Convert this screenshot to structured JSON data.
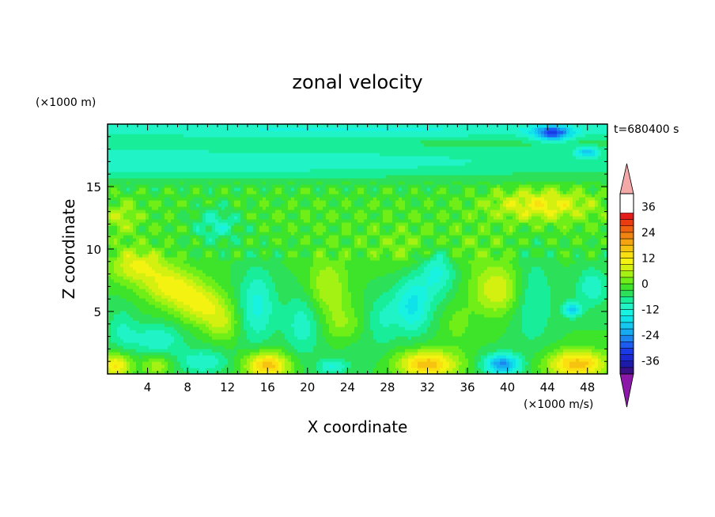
{
  "chart_data": {
    "type": "heatmap",
    "title": "zonal velocity",
    "xlabel": "X coordinate",
    "ylabel": "Z coordinate",
    "x_unit_label": "(×1000 m)",
    "z_unit_label": "(×1000 m)",
    "colorbar_unit_label": "(×1000 m/s)",
    "time_label": "t=680400 s",
    "xlim": [
      0,
      50
    ],
    "ylim": [
      0,
      20
    ],
    "xticks": [
      4,
      8,
      12,
      16,
      20,
      24,
      28,
      32,
      36,
      40,
      44,
      48
    ],
    "yticks": [
      5,
      10,
      15
    ],
    "colorbar": {
      "levels": [
        -42,
        -39,
        -36,
        -33,
        -30,
        -27,
        -24,
        -21,
        -18,
        -15,
        -12,
        -9,
        -6,
        -3,
        0,
        3,
        6,
        9,
        12,
        15,
        18,
        21,
        24,
        27,
        30,
        33,
        36,
        39,
        42
      ],
      "tick_labels": [
        "36",
        "24",
        "12",
        "0",
        "-12",
        "-24",
        "-36"
      ],
      "tick_values": [
        36,
        24,
        12,
        0,
        -12,
        -24,
        -36
      ],
      "colors": [
        "#3a1088",
        "#1c1aa8",
        "#1c28d2",
        "#1a3ae8",
        "#1c5cf0",
        "#1c86f0",
        "#16aaf0",
        "#14c8f0",
        "#10e2ea",
        "#18f2e0",
        "#20f4c6",
        "#18ee9a",
        "#2ce05a",
        "#3ee42a",
        "#70ee18",
        "#a4f214",
        "#d4f010",
        "#f4f210",
        "#fae010",
        "#f6c410",
        "#f4a410",
        "#f08410",
        "#ee6210",
        "#ea3c10",
        "#e41c1c"
      ],
      "under_color": "#8c18a8",
      "over_color": "#f4a8a8"
    },
    "blobs": [
      {
        "x": 0,
        "z": 17.0,
        "value": -9,
        "sx": 60,
        "sz": 1.4
      },
      {
        "x": 25,
        "z": 19.6,
        "value": -9,
        "sx": 60,
        "sz": 0.7
      },
      {
        "x": 44.5,
        "z": 19.3,
        "value": -22,
        "sx": 1.8,
        "sz": 0.6
      },
      {
        "x": 48,
        "z": 17.8,
        "value": -14,
        "sx": 1.2,
        "sz": 0.4
      },
      {
        "x": 25,
        "z": 12.5,
        "value": 2,
        "sx": 60,
        "sz": 3.0
      },
      {
        "x": 43.5,
        "z": 13.6,
        "value": 12,
        "sx": 5.0,
        "sz": 1.3
      },
      {
        "x": 1.5,
        "z": 12.5,
        "value": 7,
        "sx": 1.6,
        "sz": 1.3
      },
      {
        "x": 11,
        "z": 12.0,
        "value": -9,
        "sx": 2.5,
        "sz": 1.4
      },
      {
        "x": 32,
        "z": 10.0,
        "value": 5,
        "sx": 6.0,
        "sz": 1.5
      },
      {
        "x": 3.0,
        "z": 8.7,
        "value": 12,
        "sx": 2.8,
        "sz": 1.4
      },
      {
        "x": 6.5,
        "z": 7.0,
        "value": 13,
        "sx": 2.8,
        "sz": 1.5
      },
      {
        "x": 9.5,
        "z": 5.5,
        "value": 12,
        "sx": 2.5,
        "sz": 1.5
      },
      {
        "x": 11.5,
        "z": 4.0,
        "value": 8,
        "sx": 1.6,
        "sz": 1.3
      },
      {
        "x": 5.0,
        "z": 2.8,
        "value": -9,
        "sx": 2.5,
        "sz": 1.2
      },
      {
        "x": 1.5,
        "z": 3.5,
        "value": -6,
        "sx": 1.5,
        "sz": 1.8
      },
      {
        "x": 15.0,
        "z": 5.5,
        "value": -10,
        "sx": 1.8,
        "sz": 3.0
      },
      {
        "x": 22.0,
        "z": 7.0,
        "value": 9,
        "sx": 2.0,
        "sz": 2.2
      },
      {
        "x": 23.5,
        "z": 4.0,
        "value": 6,
        "sx": 1.8,
        "sz": 1.6
      },
      {
        "x": 19.5,
        "z": 4.0,
        "value": -8,
        "sx": 1.8,
        "sz": 2.5
      },
      {
        "x": 27.5,
        "z": 4.5,
        "value": -6,
        "sx": 1.5,
        "sz": 2.0
      },
      {
        "x": 30.5,
        "z": 5.5,
        "value": -13,
        "sx": 1.8,
        "sz": 2.2
      },
      {
        "x": 33.0,
        "z": 8.5,
        "value": -11,
        "sx": 1.8,
        "sz": 2.2
      },
      {
        "x": 39.0,
        "z": 6.8,
        "value": 12,
        "sx": 2.5,
        "sz": 2.0
      },
      {
        "x": 35.0,
        "z": 4.0,
        "value": 4,
        "sx": 1.5,
        "sz": 1.8
      },
      {
        "x": 42.5,
        "z": 6.0,
        "value": -7,
        "sx": 2.0,
        "sz": 3.5
      },
      {
        "x": 46.5,
        "z": 5.2,
        "value": -16,
        "sx": 0.9,
        "sz": 0.6
      },
      {
        "x": 48.5,
        "z": 7.0,
        "value": -9,
        "sx": 1.5,
        "sz": 1.5
      },
      {
        "x": 16.0,
        "z": 0.7,
        "value": 20,
        "sx": 2.2,
        "sz": 1.1
      },
      {
        "x": 32.0,
        "z": 0.8,
        "value": 20,
        "sx": 3.0,
        "sz": 1.1
      },
      {
        "x": 47.0,
        "z": 0.8,
        "value": 20,
        "sx": 3.0,
        "sz": 1.1
      },
      {
        "x": 0.8,
        "z": 0.7,
        "value": 16,
        "sx": 1.5,
        "sz": 1.0
      },
      {
        "x": 5.0,
        "z": 0.7,
        "value": 8,
        "sx": 1.5,
        "sz": 0.8
      },
      {
        "x": 9.5,
        "z": 1.0,
        "value": -9,
        "sx": 2.5,
        "sz": 1.0
      },
      {
        "x": 39.5,
        "z": 0.8,
        "value": -22,
        "sx": 1.8,
        "sz": 0.8
      },
      {
        "x": 25.0,
        "z": 1.8,
        "value": -2,
        "sx": 3.0,
        "sz": 1.6
      },
      {
        "x": 22.5,
        "z": 0.6,
        "value": -9,
        "sx": 1.5,
        "sz": 0.6
      }
    ]
  }
}
